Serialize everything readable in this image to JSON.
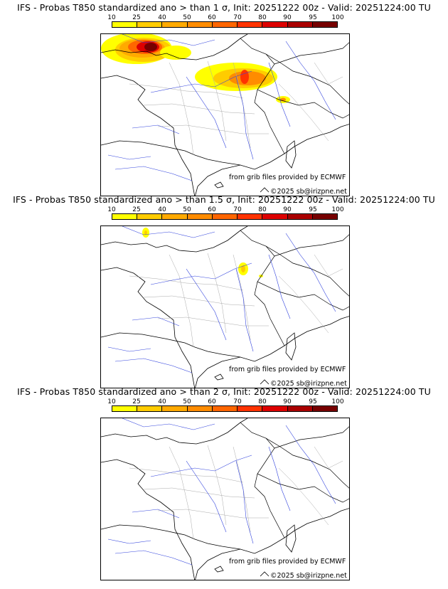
{
  "panels": [
    {
      "title": "IFS - Probas T850  standardized ano > than 1 σ, Init: 20251222 00z - Valid: 20251224:00 TU",
      "threshold": "1 σ"
    },
    {
      "title": "IFS - Probas T850  standardized ano > than 1.5 σ, Init: 20251222 00z - Valid: 20251224:00 TU",
      "threshold": "1.5 σ"
    },
    {
      "title": "IFS - Probas T850  standardized ano > than 2 σ, Init: 20251222 00z - Valid: 20251224:00 TU",
      "threshold": "2 σ"
    }
  ],
  "scale": {
    "ticks": [
      "10",
      "25",
      "40",
      "50",
      "60",
      "70",
      "80",
      "90",
      "95",
      "100"
    ],
    "colors": [
      "#ffff00",
      "#ffcc00",
      "#ffaa00",
      "#ff8c00",
      "#ff6600",
      "#ff3300",
      "#dd0000",
      "#aa0000",
      "#770000"
    ]
  },
  "credits": {
    "grib": "from grib files provided by ECMWF",
    "copyright": "©2025 sb@irizpne.net"
  }
}
